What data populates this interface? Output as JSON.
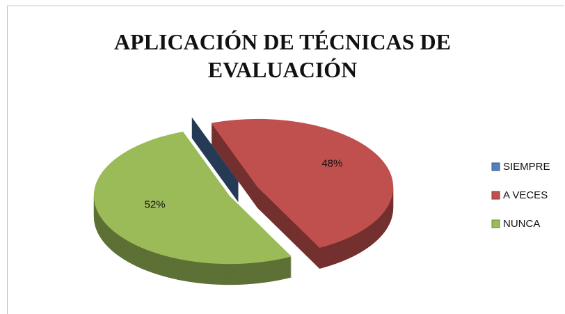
{
  "chart_data": {
    "type": "pie",
    "title": "APLICACIÓN DE TÉCNICAS DE EVALUACIÓN",
    "categories": [
      "SIEMPRE",
      "A VECES",
      "NUNCA"
    ],
    "values": [
      0,
      48,
      52
    ],
    "value_labels": [
      null,
      "48%",
      "52%"
    ],
    "colors": [
      "#4f81bd",
      "#c0504d",
      "#9bbb59"
    ],
    "legend": "right"
  }
}
